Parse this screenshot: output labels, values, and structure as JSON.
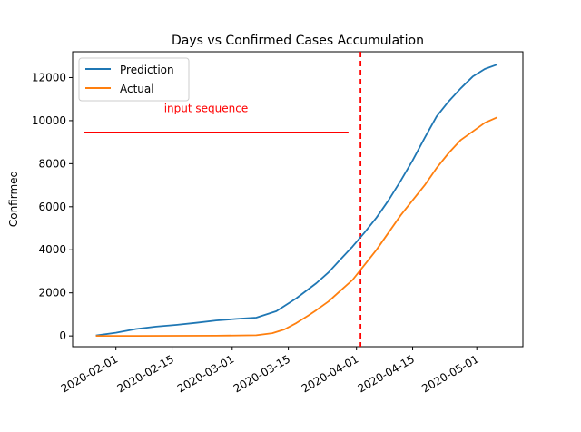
{
  "chart_data": {
    "type": "line",
    "title": "Days vs Confirmed Cases Accumulation",
    "xlabel": "",
    "ylabel": "Confirmed",
    "x_tick_labels": [
      "2020-02-01",
      "2020-02-15",
      "2020-03-01",
      "2020-03-15",
      "2020-04-01",
      "2020-04-15",
      "2020-05-01"
    ],
    "y_tick_labels": [
      "0",
      "2000",
      "4000",
      "6000",
      "8000",
      "10000",
      "12000"
    ],
    "ylim": [
      -500,
      13200
    ],
    "grid": false,
    "legend_location": "top-left",
    "series": [
      {
        "name": "Prediction",
        "color": "#1f77b4",
        "days": [
          0,
          5,
          10,
          15,
          20,
          25,
          30,
          35,
          40,
          45,
          50,
          55,
          58,
          61,
          64,
          67,
          70,
          73,
          76,
          79,
          82,
          85,
          88,
          91,
          94,
          97,
          100
        ],
        "values": [
          20,
          150,
          320,
          430,
          510,
          610,
          720,
          790,
          850,
          1150,
          1750,
          2450,
          2950,
          3550,
          4150,
          4800,
          5500,
          6300,
          7200,
          8150,
          9200,
          10200,
          10900,
          11500,
          12050,
          12400,
          12600
        ]
      },
      {
        "name": "Actual",
        "color": "#ff7f0e",
        "days": [
          0,
          10,
          20,
          30,
          40,
          44,
          47,
          50,
          53,
          55,
          58,
          61,
          64,
          67,
          70,
          73,
          76,
          79,
          82,
          85,
          88,
          91,
          94,
          97,
          100
        ],
        "values": [
          0,
          2,
          5,
          10,
          30,
          130,
          300,
          600,
          950,
          1200,
          1600,
          2100,
          2600,
          3300,
          4000,
          4800,
          5600,
          6300,
          7000,
          7800,
          8500,
          9100,
          9500,
          9900,
          10150
        ]
      }
    ],
    "annotations": [
      {
        "label": "input sequence",
        "color": "#ff0000",
        "style": "solid horizontal line",
        "y": 9450,
        "x_start_day": -3,
        "x_end_day": 63,
        "label_x_day": 17,
        "label_y": 10400
      },
      {
        "label": "",
        "color": "#ff0000",
        "style": "dashed vertical line",
        "x_day": 66
      }
    ]
  }
}
